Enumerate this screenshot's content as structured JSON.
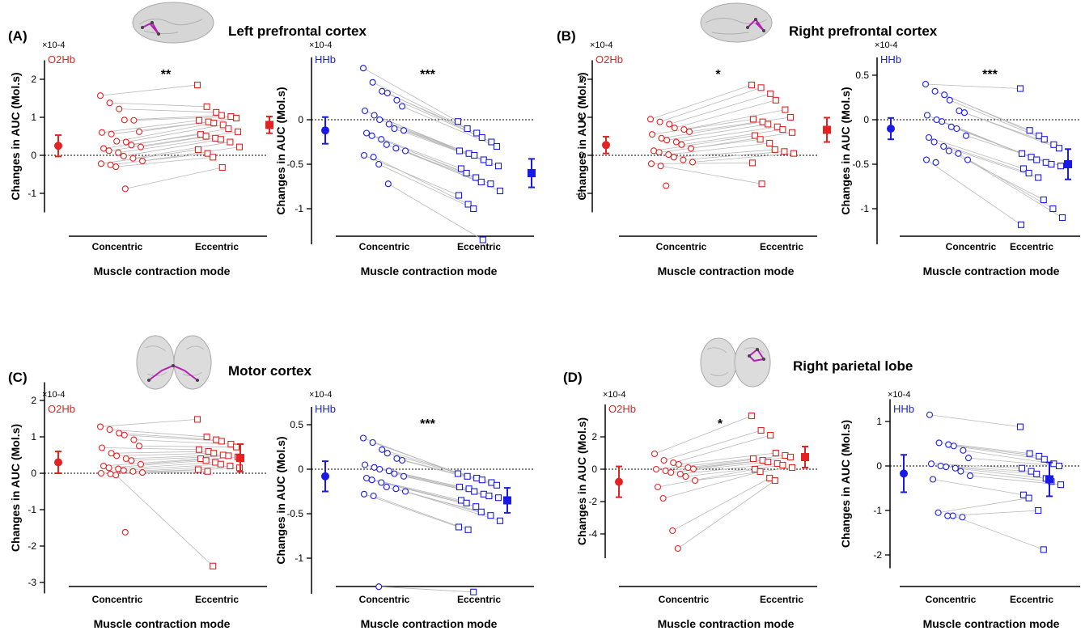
{
  "figure": {
    "panels": [
      {
        "label": "(A)",
        "title": "Left prefrontal cortex"
      },
      {
        "label": "(B)",
        "title": "Right prefrontal cortex"
      },
      {
        "label": "(C)",
        "title": "Motor cortex"
      },
      {
        "label": "(D)",
        "title": "Right parietal lobe"
      }
    ]
  },
  "colors": {
    "o2hb": "#e32222",
    "hhb": "#1a1ae6",
    "line": "#b8b8b8"
  },
  "chart_data": [
    {
      "type": "scatter",
      "panel": "(A)",
      "signal_label": "O2Hb",
      "y_multiplier": "×10-4",
      "ylabel": "Changes in AUC (Mol.s)",
      "xlabel": "Muscle contraction mode",
      "categories": [
        "Concentric",
        "Eccentric"
      ],
      "significance": "**",
      "ylim": [
        -1.5,
        2.5
      ],
      "yticks": [
        -1,
        0,
        1,
        2
      ],
      "concentric": [
        1.57,
        1.38,
        1.22,
        0.93,
        0.92,
        0.62,
        0.6,
        0.56,
        0.37,
        0.35,
        0.27,
        0.22,
        0.18,
        0.12,
        0.07,
        -0.02,
        -0.08,
        -0.15,
        -0.22,
        -0.25,
        -0.3,
        -0.88
      ],
      "eccentric": [
        1.85,
        1.28,
        1.13,
        1.05,
        1.02,
        0.98,
        0.92,
        0.88,
        0.85,
        0.8,
        0.7,
        0.62,
        0.55,
        0.5,
        0.45,
        0.42,
        0.35,
        0.22,
        0.15,
        0.05,
        -0.05,
        -0.32
      ],
      "mean": [
        0.25,
        0.8
      ],
      "error": [
        0.28,
        0.22
      ]
    },
    {
      "type": "scatter",
      "panel": "(A)",
      "signal_label": "HHb",
      "y_multiplier": "×10-4",
      "ylabel": "Changes in AUC (Mol.s)",
      "xlabel": "Muscle contraction mode",
      "categories": [
        "Concentric",
        "Eccentric"
      ],
      "significance": "***",
      "ylim": [
        -1.4,
        0.7
      ],
      "yticks": [
        -1,
        -0.5,
        0
      ],
      "concentric": [
        0.58,
        0.42,
        0.32,
        0.3,
        0.22,
        0.15,
        0.1,
        0.05,
        0.0,
        -0.05,
        -0.1,
        -0.12,
        -0.15,
        -0.18,
        -0.22,
        -0.28,
        -0.32,
        -0.35,
        -0.4,
        -0.42,
        -0.5,
        -0.72
      ],
      "eccentric": [
        -0.02,
        -0.1,
        -0.15,
        -0.2,
        -0.25,
        -0.3,
        -0.35,
        -0.38,
        -0.4,
        -0.45,
        -0.48,
        -0.52,
        -0.55,
        -0.6,
        -0.65,
        -0.7,
        -0.72,
        -0.8,
        -0.85,
        -0.95,
        -1.0,
        -1.35
      ],
      "mean": [
        -0.12,
        -0.6
      ],
      "error": [
        0.15,
        0.16
      ]
    },
    {
      "type": "scatter",
      "panel": "(B)",
      "signal_label": "O2Hb",
      "y_multiplier": "×10-4",
      "ylabel": "Changes in AUC (Mol.s)",
      "xlabel": "Muscle contraction mode",
      "categories": [
        "Concentric",
        "Eccentric"
      ],
      "significance": "*",
      "ylim": [
        -1.5,
        2.5
      ],
      "yticks": [
        -1,
        0,
        1,
        2
      ],
      "concentric": [
        0.95,
        0.88,
        0.82,
        0.72,
        0.68,
        0.62,
        0.55,
        0.45,
        0.4,
        0.35,
        0.28,
        0.18,
        0.12,
        0.08,
        0.02,
        -0.05,
        -0.12,
        -0.18,
        -0.22,
        -0.28,
        -0.8
      ],
      "eccentric": [
        1.85,
        1.78,
        1.62,
        1.45,
        1.2,
        1.0,
        0.95,
        0.88,
        0.82,
        0.75,
        0.68,
        0.6,
        0.52,
        0.42,
        0.32,
        0.15,
        0.1,
        0.05,
        -0.2,
        -0.75
      ],
      "mean": [
        0.27,
        0.67
      ],
      "error": [
        0.22,
        0.32
      ]
    },
    {
      "type": "scatter",
      "panel": "(B)",
      "signal_label": "HHb",
      "y_multiplier": "×10-4",
      "ylabel": "Changes in AUC (Mol.s)",
      "xlabel": "Muscle contraction mode",
      "categories": [
        "Concentric",
        "Eccentric"
      ],
      "significance": "***",
      "ylim": [
        -1.4,
        0.7
      ],
      "yticks": [
        -1,
        -0.5,
        0,
        0.5
      ],
      "concentric": [
        0.4,
        0.32,
        0.28,
        0.22,
        0.1,
        0.08,
        0.05,
        0.0,
        -0.02,
        -0.08,
        -0.1,
        -0.18,
        -0.2,
        -0.25,
        -0.3,
        -0.35,
        -0.38,
        -0.45,
        -0.45,
        -0.48
      ],
      "eccentric": [
        0.35,
        -0.12,
        -0.18,
        -0.22,
        -0.28,
        -0.32,
        -0.38,
        -0.42,
        -0.45,
        -0.48,
        -0.5,
        -0.52,
        -0.55,
        -0.6,
        -0.65,
        -0.9,
        -1.0,
        -1.1,
        -1.18
      ],
      "mean": [
        -0.1,
        -0.5
      ],
      "error": [
        0.12,
        0.17
      ]
    },
    {
      "type": "scatter",
      "panel": "(C)",
      "signal_label": "O2Hb",
      "y_multiplier": "×10-4",
      "ylabel": "Changes in AUC (Mol.s)",
      "xlabel": "Muscle contraction mode",
      "categories": [
        "Concentric",
        "Eccentric"
      ],
      "significance": "",
      "ylim": [
        -3.3,
        2.5
      ],
      "yticks": [
        -3,
        -2,
        -1,
        0,
        1,
        2
      ],
      "concentric": [
        1.28,
        1.2,
        1.1,
        1.05,
        0.92,
        0.75,
        0.7,
        0.55,
        0.48,
        0.4,
        0.35,
        0.25,
        0.2,
        0.15,
        0.12,
        0.08,
        0.05,
        0.02,
        0.0,
        -0.02,
        -0.05,
        -1.62
      ],
      "eccentric": [
        1.48,
        1.0,
        0.92,
        0.88,
        0.8,
        0.72,
        0.65,
        0.6,
        0.55,
        0.5,
        0.48,
        0.45,
        0.4,
        0.35,
        0.3,
        0.25,
        0.2,
        0.15,
        0.1,
        0.05,
        -2.55
      ],
      "mean": [
        0.3,
        0.42
      ],
      "error": [
        0.3,
        0.38
      ]
    },
    {
      "type": "scatter",
      "panel": "(C)",
      "signal_label": "HHb",
      "y_multiplier": "×10-4",
      "ylabel": "Changes in AUC (Mol.s)",
      "xlabel": "Muscle contraction mode",
      "categories": [
        "Concentric",
        "Eccentric"
      ],
      "significance": "***",
      "ylim": [
        -1.4,
        0.7
      ],
      "yticks": [
        -1,
        -0.5,
        0,
        0.5
      ],
      "concentric": [
        0.35,
        0.3,
        0.22,
        0.18,
        0.12,
        0.1,
        0.05,
        0.02,
        0.0,
        -0.02,
        -0.05,
        -0.08,
        -0.1,
        -0.12,
        -0.15,
        -0.2,
        -0.22,
        -0.25,
        -0.28,
        -0.3,
        -1.32
      ],
      "eccentric": [
        -0.05,
        -0.08,
        -0.1,
        -0.12,
        -0.15,
        -0.18,
        -0.2,
        -0.22,
        -0.25,
        -0.28,
        -0.3,
        -0.32,
        -0.35,
        -0.38,
        -0.42,
        -0.48,
        -0.52,
        -0.58,
        -0.65,
        -0.68,
        -1.38
      ],
      "mean": [
        -0.08,
        -0.35
      ],
      "error": [
        0.17,
        0.14
      ]
    },
    {
      "type": "scatter",
      "panel": "(D)",
      "signal_label": "O2Hb",
      "y_multiplier": "×10-4",
      "ylabel": "Changes in AUC (Mol.s)",
      "xlabel": "Muscle contraction mode",
      "categories": [
        "Concentric",
        "Eccentric"
      ],
      "significance": "*",
      "ylim": [
        -5.5,
        4
      ],
      "yticks": [
        -4,
        -2,
        0,
        2
      ],
      "concentric": [
        0.95,
        0.55,
        0.4,
        0.3,
        0.1,
        0.02,
        0.0,
        -0.1,
        -0.2,
        -0.3,
        -0.45,
        -0.7,
        -1.1,
        -1.8,
        -3.8,
        -4.9
      ],
      "eccentric": [
        3.3,
        2.4,
        2.1,
        1.0,
        0.85,
        0.75,
        0.65,
        0.55,
        0.45,
        0.35,
        0.25,
        0.1,
        0.0,
        -0.15,
        -0.55,
        -0.7
      ],
      "mean": [
        -0.78,
        0.75
      ],
      "error": [
        0.95,
        0.65
      ]
    },
    {
      "type": "scatter",
      "panel": "(D)",
      "signal_label": "HHb",
      "y_multiplier": "×10-4",
      "ylabel": "Changes in AUC (Mol.s)",
      "xlabel": "Muscle contraction mode",
      "categories": [
        "Concentric",
        "Eccentric"
      ],
      "significance": "",
      "ylim": [
        -2.3,
        1.5
      ],
      "yticks": [
        -2,
        -1,
        0,
        1
      ],
      "concentric": [
        1.15,
        0.52,
        0.48,
        0.45,
        0.35,
        0.18,
        0.05,
        0.0,
        -0.02,
        -0.05,
        -0.12,
        -0.22,
        -0.3,
        -1.05,
        -1.12,
        -1.12,
        -1.15
      ],
      "eccentric": [
        0.88,
        0.28,
        0.22,
        0.15,
        0.05,
        0.0,
        -0.05,
        -0.12,
        -0.18,
        -0.28,
        -0.35,
        -0.42,
        -0.65,
        -0.72,
        -1.0,
        -1.88
      ],
      "mean": [
        -0.17,
        -0.3
      ],
      "error": [
        0.42,
        0.38
      ]
    }
  ]
}
